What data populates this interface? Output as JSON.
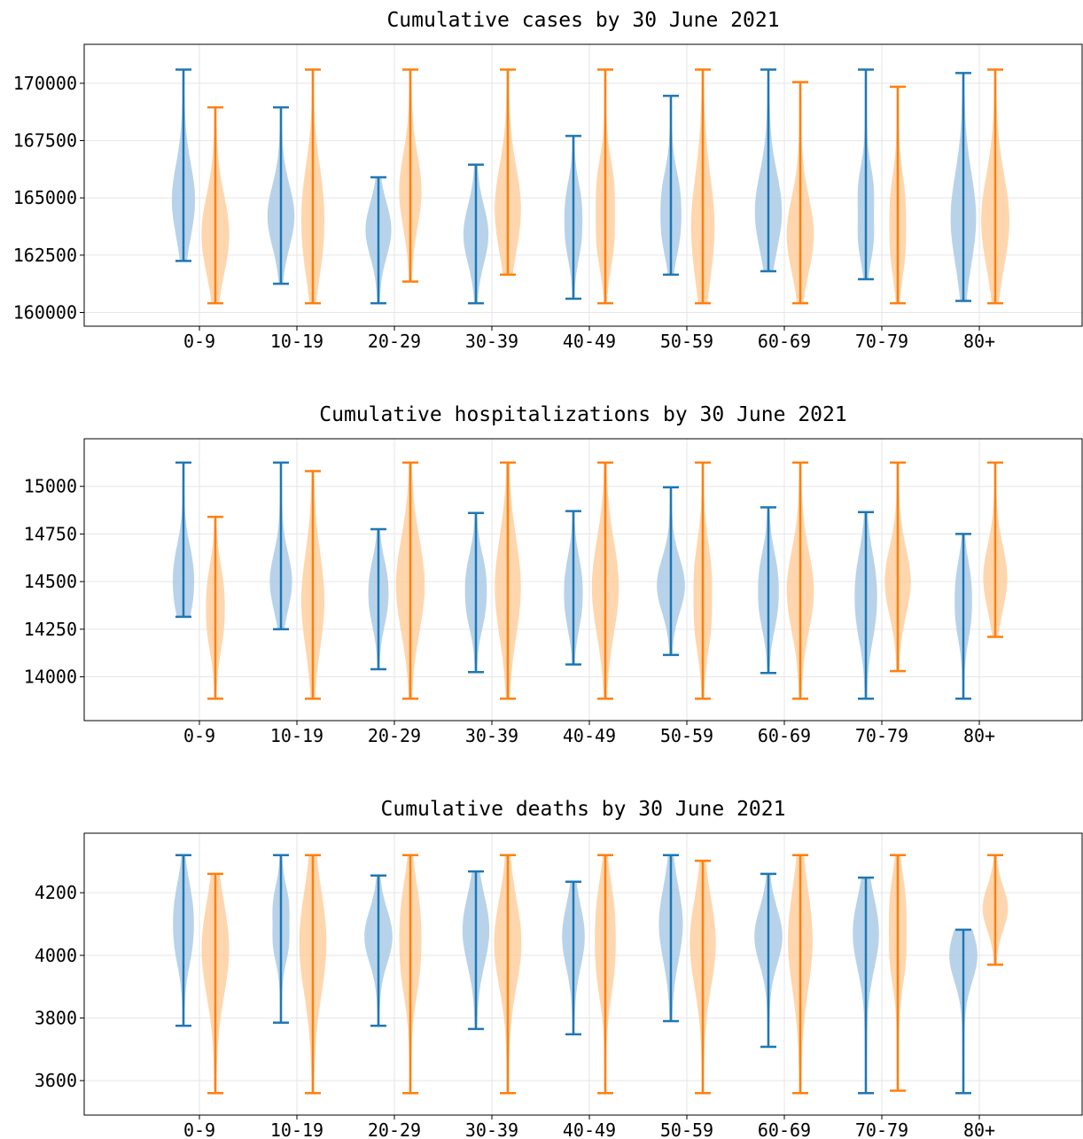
{
  "chart_data": [
    {
      "type": "violin",
      "title": "Cumulative cases by 30 June 2021",
      "categories": [
        "0-9",
        "10-19",
        "20-29",
        "30-39",
        "40-49",
        "50-59",
        "60-69",
        "70-79",
        "80+"
      ],
      "ylim": [
        159400,
        171700
      ],
      "yticks": [
        160000,
        162500,
        165000,
        167500,
        170000
      ],
      "grid": true,
      "series": [
        {
          "color": "#1f77b4",
          "fill": "#a6c8e4",
          "min": [
            162250,
            161250,
            160400,
            160400,
            160600,
            161650,
            161800,
            161450,
            160500
          ],
          "max": [
            170600,
            168950,
            165900,
            166450,
            167700,
            169450,
            170600,
            170600,
            170450
          ],
          "median": [
            164900,
            164200,
            163600,
            163400,
            164000,
            164300,
            164400,
            164300,
            164100
          ]
        },
        {
          "color": "#ff7f0e",
          "fill": "#ffcc99",
          "min": [
            160400,
            160400,
            161350,
            161650,
            160400,
            160400,
            160400,
            160400,
            160400
          ],
          "max": [
            168950,
            170600,
            170600,
            170600,
            170600,
            170600,
            170050,
            169850,
            170600
          ],
          "median": [
            163400,
            164000,
            165300,
            164500,
            164300,
            163700,
            163400,
            163800,
            164000
          ]
        }
      ]
    },
    {
      "type": "violin",
      "title": "Cumulative hospitalizations by 30 June 2021",
      "categories": [
        "0-9",
        "10-19",
        "20-29",
        "30-39",
        "40-49",
        "50-59",
        "60-69",
        "70-79",
        "80+"
      ],
      "ylim": [
        13770,
        15250
      ],
      "yticks": [
        14000,
        14250,
        14500,
        14750,
        15000
      ],
      "grid": true,
      "series": [
        {
          "color": "#1f77b4",
          "fill": "#a6c8e4",
          "min": [
            14315,
            14250,
            14040,
            14025,
            14065,
            14115,
            14020,
            13885,
            13885
          ],
          "max": [
            15125,
            15125,
            14775,
            14860,
            14870,
            14995,
            14890,
            14865,
            14750
          ],
          "median": [
            14500,
            14500,
            14440,
            14450,
            14440,
            14480,
            14450,
            14420,
            14400
          ]
        },
        {
          "color": "#ff7f0e",
          "fill": "#ffcc99",
          "min": [
            13885,
            13885,
            13885,
            13885,
            13885,
            13885,
            13885,
            14030,
            14210
          ],
          "max": [
            14840,
            15080,
            15125,
            15125,
            15125,
            15125,
            15125,
            15125,
            15125
          ],
          "median": [
            14360,
            14400,
            14480,
            14470,
            14470,
            14420,
            14450,
            14500,
            14520
          ]
        }
      ]
    },
    {
      "type": "violin",
      "title": "Cumulative deaths by 30 June 2021",
      "categories": [
        "0-9",
        "10-19",
        "20-29",
        "30-39",
        "40-49",
        "50-59",
        "60-69",
        "70-79",
        "80+"
      ],
      "ylim": [
        3490,
        4390
      ],
      "yticks": [
        3600,
        3800,
        4000,
        4200
      ],
      "grid": true,
      "series": [
        {
          "color": "#1f77b4",
          "fill": "#a6c8e4",
          "min": [
            3775,
            3785,
            3775,
            3765,
            3748,
            3790,
            3708,
            3560,
            3560
          ],
          "max": [
            4320,
            4320,
            4255,
            4268,
            4235,
            4320,
            4260,
            4248,
            4082
          ],
          "median": [
            4100,
            4100,
            4060,
            4080,
            4060,
            4100,
            4060,
            4070,
            4000
          ]
        },
        {
          "color": "#ff7f0e",
          "fill": "#ffcc99",
          "min": [
            3560,
            3560,
            3560,
            3560,
            3560,
            3560,
            3560,
            3568,
            3970
          ],
          "max": [
            4260,
            4320,
            4320,
            4320,
            4320,
            4302,
            4320,
            4320,
            4320
          ],
          "median": [
            4020,
            4040,
            4050,
            4040,
            4050,
            4040,
            4050,
            4080,
            4150
          ]
        }
      ]
    }
  ]
}
